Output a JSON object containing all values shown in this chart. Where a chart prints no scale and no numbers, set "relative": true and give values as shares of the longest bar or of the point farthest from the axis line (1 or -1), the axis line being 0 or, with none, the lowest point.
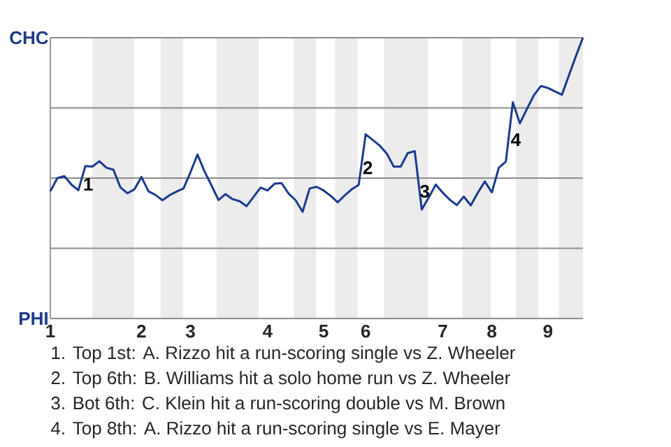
{
  "chart_data": {
    "type": "line",
    "relative": true,
    "marker": "none",
    "line_style": "solid",
    "categories": [
      "1",
      null,
      null,
      null,
      null,
      null,
      null,
      null,
      null,
      null,
      null,
      null,
      null,
      "2",
      null,
      null,
      null,
      null,
      null,
      null,
      "3",
      null,
      null,
      null,
      null,
      null,
      null,
      null,
      null,
      null,
      null,
      "4",
      null,
      null,
      null,
      null,
      null,
      null,
      null,
      "5",
      null,
      null,
      null,
      null,
      null,
      "6",
      null,
      null,
      null,
      null,
      null,
      null,
      null,
      null,
      null,
      null,
      "7",
      null,
      null,
      null,
      null,
      null,
      null,
      "8",
      null,
      null,
      null,
      null,
      null,
      null,
      null,
      "9",
      null,
      null,
      null,
      null,
      null
    ],
    "ref_lines": [
      {
        "axis": "y",
        "value": 1,
        "label": "CHC",
        "color": "#8c8c8c"
      },
      {
        "axis": "y",
        "value": 0.75,
        "color": "#8c8c8c"
      },
      {
        "axis": "y",
        "value": 0.5,
        "color": "#8c8c8c"
      },
      {
        "axis": "y",
        "value": 0.25,
        "color": "#8c8c8c"
      },
      {
        "axis": "y",
        "value": 0,
        "label": "PHI",
        "color": "#8c8c8c"
      }
    ],
    "series": [
      {
        "color": "#1a3a8f",
        "values": [
          0.453,
          0.5,
          0.507,
          0.477,
          0.457,
          0.543,
          0.541,
          0.56,
          0.537,
          0.53,
          0.467,
          0.446,
          0.46,
          0.504,
          0.453,
          0.44,
          0.421,
          0.439,
          0.452,
          0.463,
          0.521,
          0.584,
          0.524,
          0.474,
          0.422,
          0.443,
          0.425,
          0.418,
          0.4,
          0.433,
          0.466,
          0.456,
          0.48,
          0.482,
          0.445,
          0.421,
          0.38,
          0.463,
          0.469,
          0.456,
          0.437,
          0.414,
          0.438,
          0.46,
          0.476,
          0.656,
          0.636,
          0.616,
          0.588,
          0.541,
          0.541,
          0.589,
          0.596,
          0.388,
          0.431,
          0.477,
          0.448,
          0.423,
          0.404,
          0.434,
          0.403,
          0.448,
          0.488,
          0.449,
          0.537,
          0.559,
          0.77,
          0.695,
          0.746,
          0.795,
          0.828,
          0.821,
          0.809,
          0.797,
          0.866,
          0.935,
          1
        ]
      }
    ],
    "annotations": [
      "1",
      "2",
      "3",
      "4",
      "1. Top 1st: A. Rizzo hit a run-scoring single vs Z. Wheeler",
      "2. Top 6th: B. Williams hit a solo home run vs Z. Wheeler",
      "3. Bot 6th: C. Klein hit a run-scoring double vs M. Brown",
      "4. Top 8th: A. Rizzo hit a run-scoring single vs E. Mayer"
    ]
  }
}
